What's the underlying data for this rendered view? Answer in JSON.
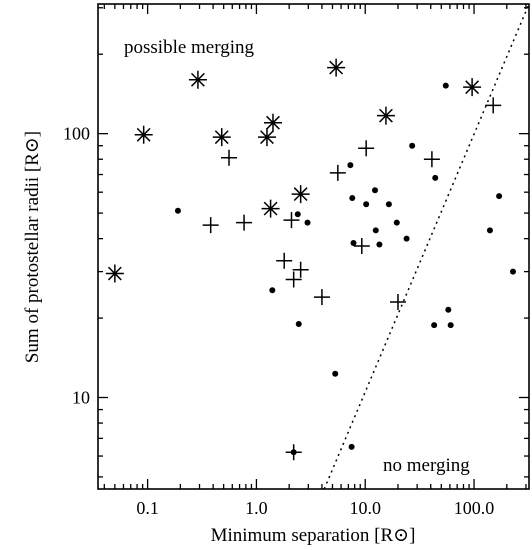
{
  "chart_data": {
    "type": "scatter",
    "title": "",
    "xlabel": "Minimum separation [R⊙]",
    "ylabel": "Sum of protostellar radii [R⊙]",
    "x_scale": "log",
    "y_scale": "log",
    "xlim": [
      0.035,
      320
    ],
    "ylim": [
      4.5,
      310
    ],
    "x_ticks": [
      0.1,
      1.0,
      10.0,
      100.0
    ],
    "x_tick_labels": [
      "0.1",
      "1.0",
      "10.0",
      "100.0"
    ],
    "y_ticks": [
      10,
      100
    ],
    "y_tick_labels": [
      "10",
      "100"
    ],
    "grid": false,
    "annotations": [
      "possible merging",
      "no merging"
    ],
    "boundary_line": {
      "style": "dotted",
      "points": [
        [
          4.2,
          4.5
        ],
        [
          320,
          310
        ]
      ]
    },
    "series": [
      {
        "marker": "asterisk",
        "points": [
          [
            0.05,
            29.5
          ],
          [
            0.092,
            99
          ],
          [
            0.29,
            160
          ],
          [
            0.48,
            97
          ],
          [
            1.25,
            97
          ],
          [
            1.42,
            110
          ],
          [
            1.35,
            52
          ],
          [
            2.55,
            59
          ],
          [
            5.4,
            178
          ],
          [
            15.5,
            117
          ],
          [
            96,
            150
          ]
        ]
      },
      {
        "marker": "plus",
        "points": [
          [
            0.38,
            45
          ],
          [
            0.56,
            81
          ],
          [
            0.77,
            46
          ],
          [
            1.8,
            33
          ],
          [
            2.1,
            47
          ],
          [
            2.2,
            28
          ],
          [
            2.55,
            30.5
          ],
          [
            4.0,
            24
          ],
          [
            5.6,
            71
          ],
          [
            9.3,
            37.5
          ],
          [
            10.2,
            88
          ],
          [
            20,
            23
          ],
          [
            41,
            80
          ],
          [
            150,
            128
          ],
          [
            2.2,
            6.2
          ]
        ]
      },
      {
        "marker": "dot",
        "points": [
          [
            0.19,
            51
          ],
          [
            1.4,
            25.5
          ],
          [
            2.4,
            49.5
          ],
          [
            2.45,
            19
          ],
          [
            2.95,
            46
          ],
          [
            5.3,
            12.3
          ],
          [
            7.3,
            76
          ],
          [
            7.6,
            57
          ],
          [
            7.8,
            38.5
          ],
          [
            7.5,
            6.5
          ],
          [
            10.2,
            54
          ],
          [
            12.3,
            61
          ],
          [
            12.5,
            43
          ],
          [
            13.5,
            38
          ],
          [
            16.5,
            54
          ],
          [
            19.5,
            46
          ],
          [
            24,
            40
          ],
          [
            27,
            90
          ],
          [
            43,
            18.8
          ],
          [
            44,
            68
          ],
          [
            55,
            152
          ],
          [
            58,
            21.5
          ],
          [
            61,
            18.8
          ],
          [
            140,
            43
          ],
          [
            170,
            58
          ],
          [
            228,
            30
          ],
          [
            2.2,
            6.2
          ]
        ]
      }
    ]
  }
}
